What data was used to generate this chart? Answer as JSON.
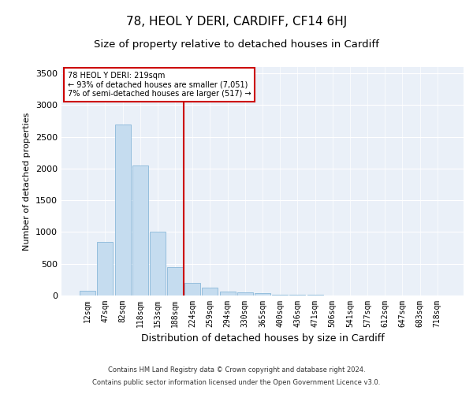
{
  "title": "78, HEOL Y DERI, CARDIFF, CF14 6HJ",
  "subtitle": "Size of property relative to detached houses in Cardiff",
  "xlabel": "Distribution of detached houses by size in Cardiff",
  "ylabel": "Number of detached properties",
  "categories": [
    "12sqm",
    "47sqm",
    "82sqm",
    "118sqm",
    "153sqm",
    "188sqm",
    "224sqm",
    "259sqm",
    "294sqm",
    "330sqm",
    "365sqm",
    "400sqm",
    "436sqm",
    "471sqm",
    "506sqm",
    "541sqm",
    "577sqm",
    "612sqm",
    "647sqm",
    "683sqm",
    "718sqm"
  ],
  "values": [
    75,
    850,
    2700,
    2050,
    1000,
    450,
    200,
    130,
    65,
    55,
    35,
    15,
    10,
    8,
    5,
    3,
    2,
    2,
    1,
    1,
    1
  ],
  "bar_color": "#c5dcef",
  "bar_edge_color": "#7bafd4",
  "background_color": "#eaf0f8",
  "vline_x_index": 6,
  "vline_color": "#cc0000",
  "annotation_text": "78 HEOL Y DERI: 219sqm\n← 93% of detached houses are smaller (7,051)\n7% of semi-detached houses are larger (517) →",
  "annotation_box_color": "#ffffff",
  "annotation_box_edge_color": "#cc0000",
  "ylim": [
    0,
    3600
  ],
  "yticks": [
    0,
    500,
    1000,
    1500,
    2000,
    2500,
    3000,
    3500
  ],
  "footer1": "Contains HM Land Registry data © Crown copyright and database right 2024.",
  "footer2": "Contains public sector information licensed under the Open Government Licence v3.0.",
  "title_fontsize": 11,
  "subtitle_fontsize": 9.5,
  "tick_fontsize": 7,
  "ylabel_fontsize": 8,
  "xlabel_fontsize": 9
}
